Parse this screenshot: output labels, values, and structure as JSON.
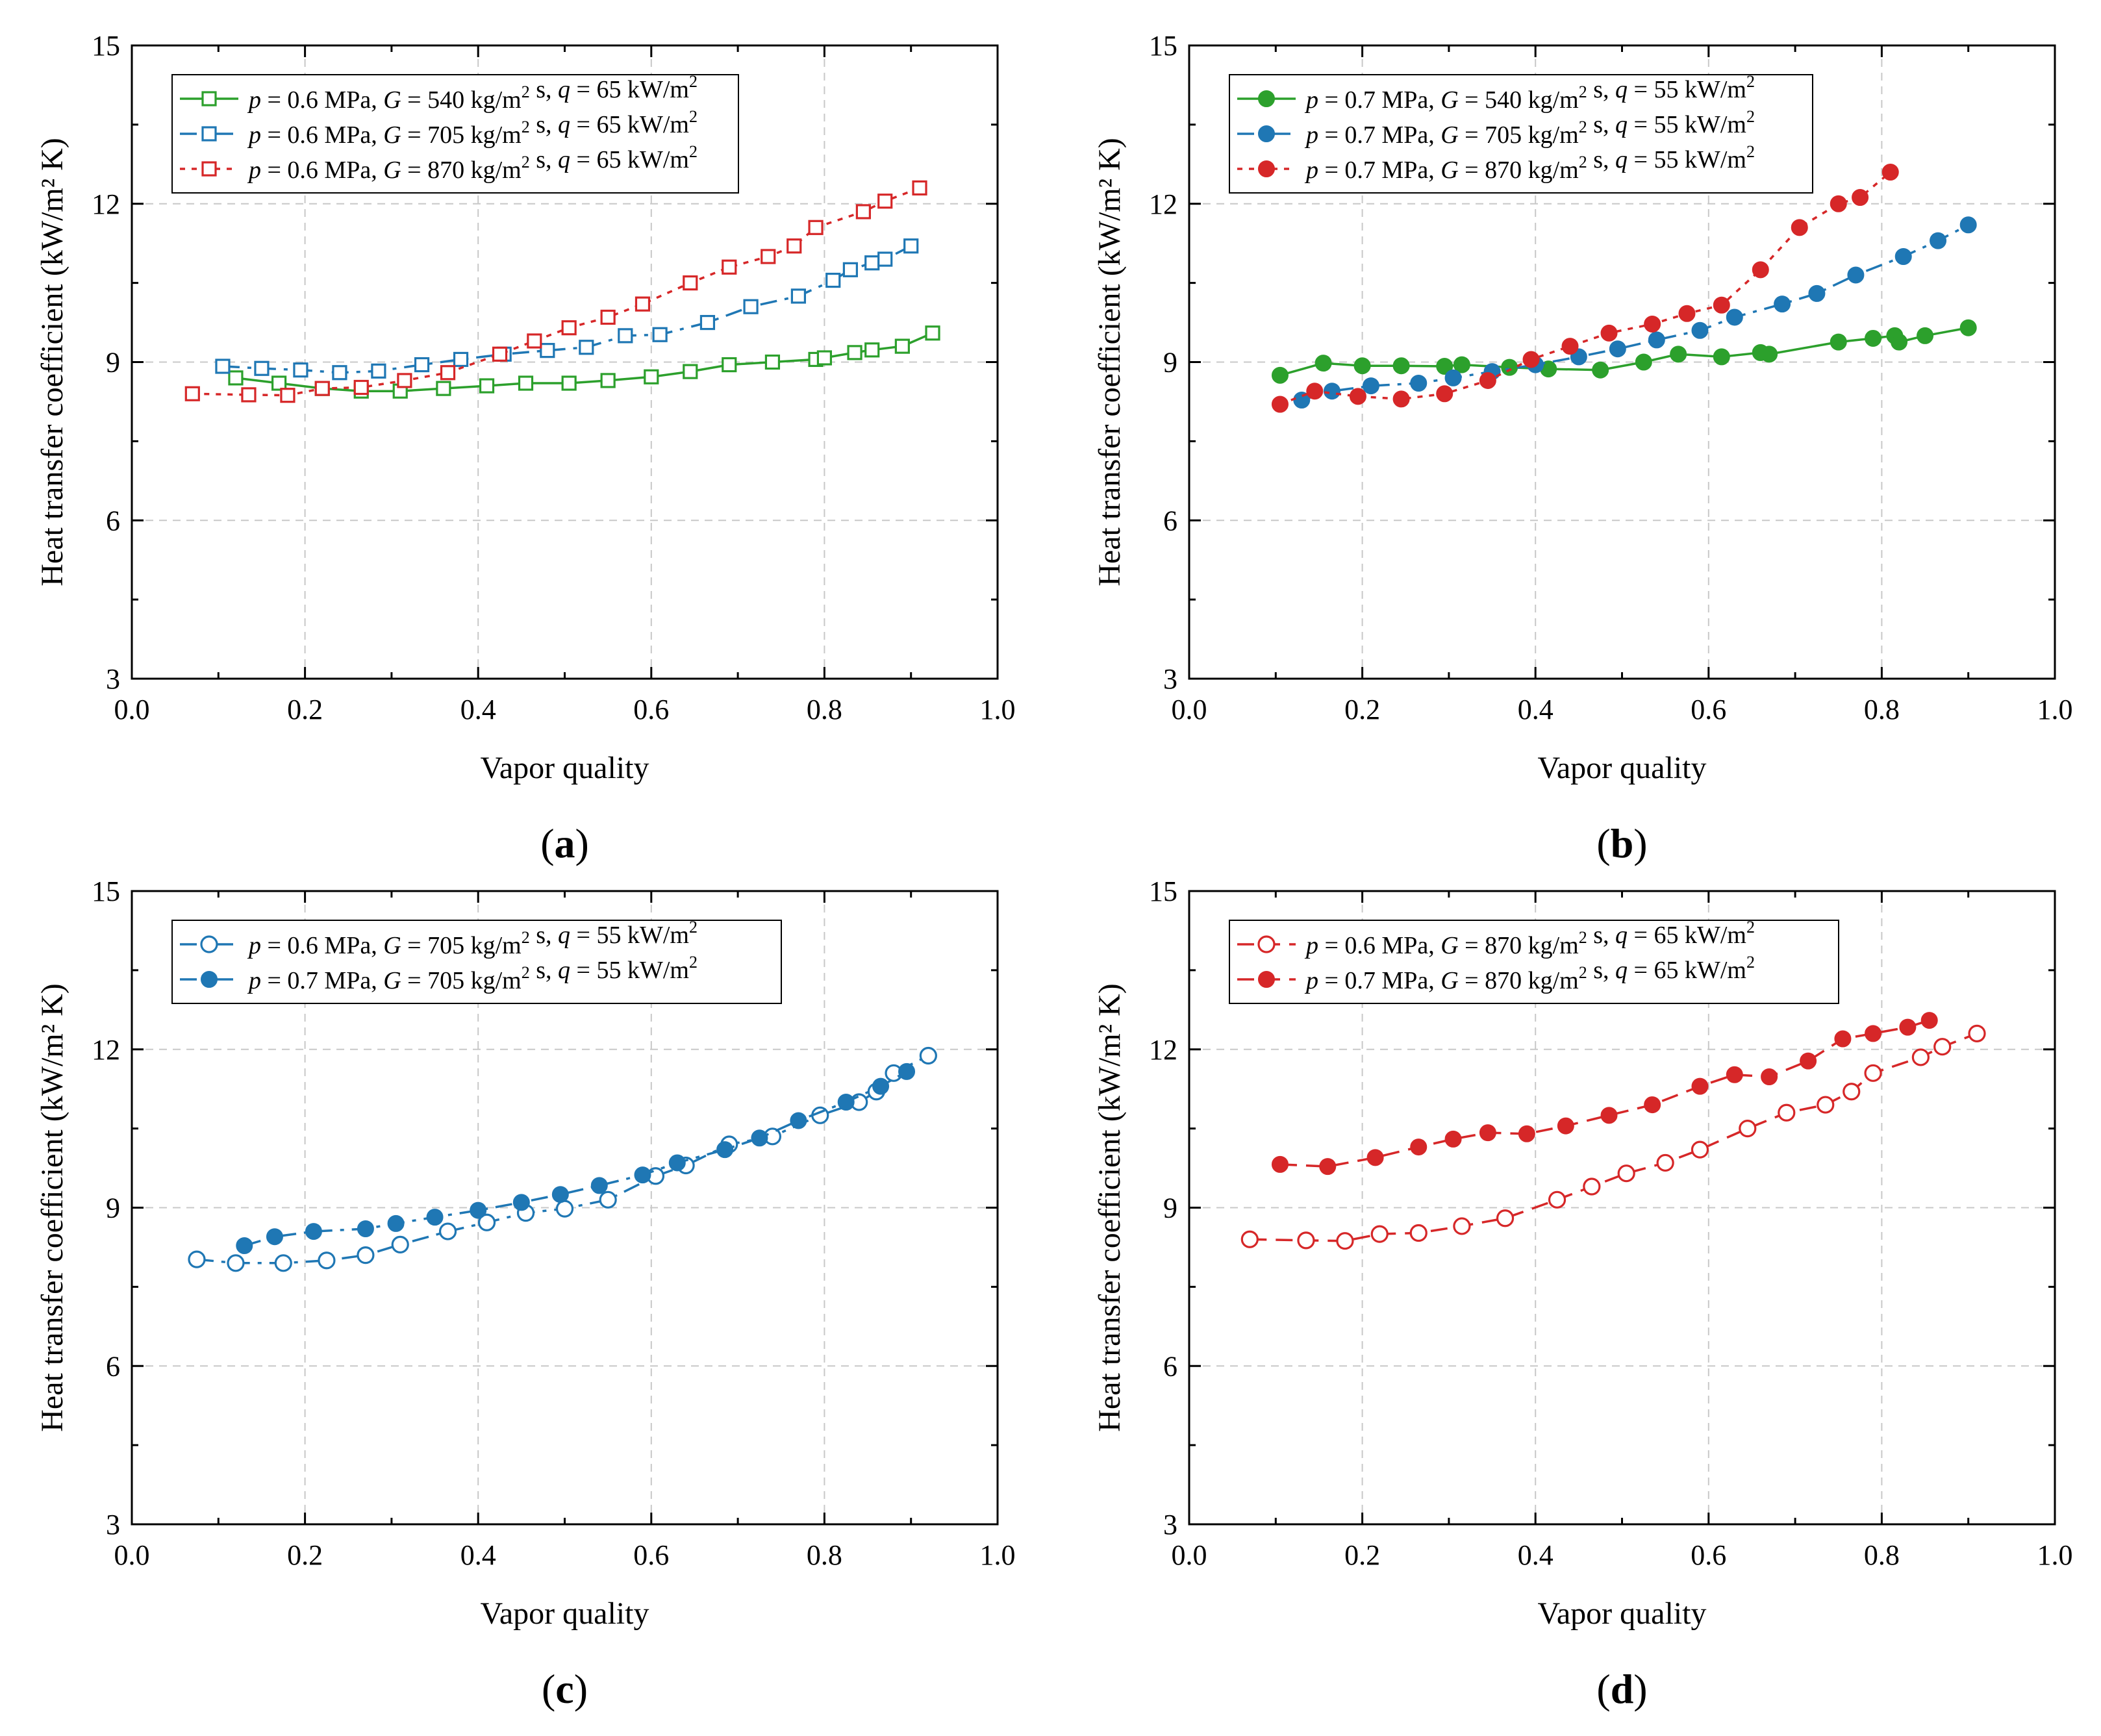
{
  "figure": {
    "panel_labels": [
      "(a)",
      "(b)",
      "(c)",
      "(d)"
    ]
  },
  "chart_data": [
    {
      "type": "line",
      "panel": "(a)",
      "xlabel": "Vapor quality",
      "ylabel": "Heat transfer coefficient (kW/m² K)",
      "xlim": [
        0.0,
        1.0
      ],
      "ylim": [
        3,
        15
      ],
      "xticks": [
        "0.0",
        "0.2",
        "0.4",
        "0.6",
        "0.8",
        "1.0"
      ],
      "yticks": [
        "3",
        "6",
        "9",
        "12",
        "15"
      ],
      "grid": true,
      "legend_position": "top-left",
      "series": [
        {
          "name": "p = 0.6 MPa, G = 540 kg/m² s, q = 65 kW/m²",
          "p": "0.6",
          "G": "540",
          "q": "65",
          "color": "#2ca02c",
          "marker": "square",
          "filled": false,
          "dash": "solid",
          "x": [
            0.12,
            0.17,
            0.22,
            0.265,
            0.31,
            0.36,
            0.41,
            0.455,
            0.505,
            0.55,
            0.6,
            0.645,
            0.69,
            0.74,
            0.79,
            0.8,
            0.835,
            0.855,
            0.89,
            0.925
          ],
          "y": [
            8.7,
            8.6,
            8.5,
            8.45,
            8.45,
            8.5,
            8.55,
            8.6,
            8.6,
            8.65,
            8.72,
            8.82,
            8.95,
            9.0,
            9.05,
            9.08,
            9.18,
            9.23,
            9.3,
            9.55
          ]
        },
        {
          "name": "p = 0.6 MPa, G = 705 kg/m² s, q = 65 kW/m²",
          "p": "0.6",
          "G": "705",
          "q": "65",
          "color": "#1f77b4",
          "marker": "square",
          "filled": false,
          "dash": "dashdot",
          "x": [
            0.105,
            0.15,
            0.195,
            0.24,
            0.285,
            0.335,
            0.38,
            0.43,
            0.48,
            0.525,
            0.57,
            0.61,
            0.665,
            0.715,
            0.77,
            0.81,
            0.83,
            0.855,
            0.87,
            0.9
          ],
          "y": [
            8.92,
            8.88,
            8.85,
            8.8,
            8.83,
            8.95,
            9.05,
            9.15,
            9.22,
            9.28,
            9.5,
            9.52,
            9.75,
            10.05,
            10.25,
            10.55,
            10.75,
            10.88,
            10.95,
            11.2
          ]
        },
        {
          "name": "p = 0.6 MPa, G = 870 kg/m² s, q = 65 kW/m²",
          "p": "0.6",
          "G": "870",
          "q": "65",
          "color": "#d62728",
          "marker": "square",
          "filled": false,
          "dash": "dotted",
          "x": [
            0.07,
            0.135,
            0.18,
            0.22,
            0.265,
            0.315,
            0.365,
            0.425,
            0.465,
            0.505,
            0.55,
            0.59,
            0.645,
            0.69,
            0.735,
            0.765,
            0.79,
            0.845,
            0.87,
            0.91
          ],
          "y": [
            8.4,
            8.38,
            8.37,
            8.5,
            8.52,
            8.65,
            8.8,
            9.15,
            9.4,
            9.65,
            9.85,
            10.1,
            10.5,
            10.8,
            11.0,
            11.2,
            11.55,
            11.85,
            12.05,
            12.3
          ]
        }
      ]
    },
    {
      "type": "line",
      "panel": "(b)",
      "xlabel": "Vapor quality",
      "ylabel": "Heat transfer coefficient (kW/m² K)",
      "xlim": [
        0.0,
        1.0
      ],
      "ylim": [
        3,
        15
      ],
      "xticks": [
        "0.0",
        "0.2",
        "0.4",
        "0.6",
        "0.8",
        "1.0"
      ],
      "yticks": [
        "3",
        "6",
        "9",
        "12",
        "15"
      ],
      "grid": true,
      "legend_position": "top-left",
      "series": [
        {
          "name": "p = 0.7 MPa, G = 540 kg/m² s, q = 55 kW/m²",
          "p": "0.7",
          "G": "540",
          "q": "55",
          "color": "#2ca02c",
          "marker": "circle",
          "filled": true,
          "dash": "solid",
          "x": [
            0.105,
            0.155,
            0.2,
            0.245,
            0.295,
            0.315,
            0.37,
            0.415,
            0.475,
            0.525,
            0.565,
            0.615,
            0.66,
            0.67,
            0.75,
            0.79,
            0.815,
            0.82,
            0.85,
            0.9
          ],
          "y": [
            8.75,
            8.98,
            8.93,
            8.93,
            8.92,
            8.95,
            8.9,
            8.87,
            8.85,
            9.0,
            9.15,
            9.1,
            9.18,
            9.15,
            9.38,
            9.45,
            9.5,
            9.38,
            9.5,
            9.65
          ]
        },
        {
          "name": "p = 0.7 MPa, G = 705 kg/m² s, q = 55 kW/m²",
          "p": "0.7",
          "G": "705",
          "q": "55",
          "color": "#1f77b4",
          "marker": "circle",
          "filled": true,
          "dash": "dashdot",
          "x": [
            0.13,
            0.165,
            0.21,
            0.265,
            0.305,
            0.35,
            0.4,
            0.45,
            0.495,
            0.54,
            0.59,
            0.63,
            0.685,
            0.725,
            0.77,
            0.825,
            0.865,
            0.9
          ],
          "y": [
            8.28,
            8.45,
            8.55,
            8.6,
            8.7,
            8.82,
            8.95,
            9.1,
            9.25,
            9.42,
            9.6,
            9.85,
            10.1,
            10.3,
            10.65,
            11.0,
            11.3,
            11.6
          ]
        },
        {
          "name": "p = 0.7 MPa, G = 870 kg/m² s, q = 55 kW/m²",
          "p": "0.7",
          "G": "870",
          "q": "55",
          "color": "#d62728",
          "marker": "circle",
          "filled": true,
          "dash": "dotted",
          "x": [
            0.105,
            0.145,
            0.195,
            0.245,
            0.295,
            0.345,
            0.395,
            0.44,
            0.485,
            0.535,
            0.575,
            0.615,
            0.66,
            0.705,
            0.75,
            0.775,
            0.81
          ],
          "y": [
            8.2,
            8.45,
            8.35,
            8.3,
            8.4,
            8.65,
            9.05,
            9.3,
            9.55,
            9.72,
            9.92,
            10.08,
            10.75,
            11.55,
            12.0,
            12.12,
            12.6
          ]
        }
      ]
    },
    {
      "type": "line",
      "panel": "(c)",
      "xlabel": "Vapor quality",
      "ylabel": "Heat transfer coefficient (kW/m² K)",
      "xlim": [
        0.0,
        1.0
      ],
      "ylim": [
        3,
        15
      ],
      "xticks": [
        "0.0",
        "0.2",
        "0.4",
        "0.6",
        "0.8",
        "1.0"
      ],
      "yticks": [
        "3",
        "6",
        "9",
        "12",
        "15"
      ],
      "grid": true,
      "legend_position": "top-left",
      "series": [
        {
          "name": "p = 0.6 MPa, G = 705 kg/m² s, q = 55 kW/m²",
          "p": "0.6",
          "G": "705",
          "q": "55",
          "color": "#1f77b4",
          "marker": "circle",
          "filled": false,
          "dash": "dashdot",
          "x": [
            0.075,
            0.12,
            0.175,
            0.225,
            0.27,
            0.31,
            0.365,
            0.41,
            0.455,
            0.5,
            0.55,
            0.605,
            0.64,
            0.69,
            0.74,
            0.795,
            0.84,
            0.86,
            0.88,
            0.92
          ],
          "y": [
            8.02,
            7.95,
            7.95,
            8.0,
            8.1,
            8.3,
            8.55,
            8.72,
            8.9,
            8.98,
            9.15,
            9.6,
            9.8,
            10.2,
            10.35,
            10.75,
            11.0,
            11.2,
            11.55,
            11.88
          ]
        },
        {
          "name": "p = 0.7 MPa, G = 705 kg/m² s, q = 55 kW/m²",
          "p": "0.7",
          "G": "705",
          "q": "55",
          "color": "#1f77b4",
          "marker": "circle",
          "filled": true,
          "dash": "dashdot",
          "x": [
            0.13,
            0.165,
            0.21,
            0.27,
            0.305,
            0.35,
            0.4,
            0.45,
            0.495,
            0.54,
            0.59,
            0.63,
            0.685,
            0.725,
            0.77,
            0.825,
            0.865,
            0.895
          ],
          "y": [
            8.28,
            8.45,
            8.55,
            8.6,
            8.7,
            8.82,
            8.95,
            9.1,
            9.25,
            9.42,
            9.62,
            9.85,
            10.1,
            10.32,
            10.65,
            11.0,
            11.3,
            11.58
          ]
        }
      ]
    },
    {
      "type": "line",
      "panel": "(d)",
      "xlabel": "Vapor quality",
      "ylabel": "Heat transfer coefficient (kW/m² K)",
      "xlim": [
        0.0,
        1.0
      ],
      "ylim": [
        3,
        15
      ],
      "xticks": [
        "0.0",
        "0.2",
        "0.4",
        "0.6",
        "0.8",
        "1.0"
      ],
      "yticks": [
        "3",
        "6",
        "9",
        "12",
        "15"
      ],
      "grid": true,
      "legend_position": "top-left",
      "series": [
        {
          "name": "p = 0.6 MPa, G = 870 kg/m² s, q = 65 kW/m²",
          "p": "0.6",
          "G": "870",
          "q": "65",
          "color": "#d62728",
          "marker": "circle",
          "filled": false,
          "dash": "dashed",
          "x": [
            0.07,
            0.135,
            0.18,
            0.22,
            0.265,
            0.315,
            0.365,
            0.425,
            0.465,
            0.505,
            0.55,
            0.59,
            0.645,
            0.69,
            0.735,
            0.765,
            0.79,
            0.845,
            0.87,
            0.91
          ],
          "y": [
            8.4,
            8.38,
            8.37,
            8.5,
            8.52,
            8.65,
            8.8,
            9.15,
            9.4,
            9.65,
            9.85,
            10.1,
            10.5,
            10.8,
            10.95,
            11.2,
            11.55,
            11.85,
            12.05,
            12.3
          ]
        },
        {
          "name": "p = 0.7 MPa, G = 870 kg/m² s, q = 65 kW/m²",
          "p": "0.7",
          "G": "870",
          "q": "65",
          "color": "#d62728",
          "marker": "circle",
          "filled": true,
          "dash": "dashed",
          "x": [
            0.105,
            0.16,
            0.215,
            0.265,
            0.305,
            0.345,
            0.39,
            0.435,
            0.485,
            0.535,
            0.59,
            0.63,
            0.67,
            0.715,
            0.755,
            0.79,
            0.83,
            0.855
          ],
          "y": [
            9.82,
            9.78,
            9.95,
            10.15,
            10.3,
            10.42,
            10.4,
            10.55,
            10.75,
            10.95,
            11.3,
            11.52,
            11.48,
            11.78,
            12.2,
            12.3,
            12.42,
            12.55
          ]
        }
      ]
    }
  ]
}
